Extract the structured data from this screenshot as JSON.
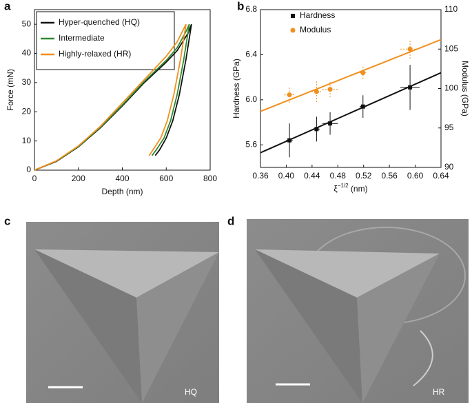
{
  "chart_data": [
    {
      "type": "line",
      "panel": "a",
      "xlabel": "Depth (nm)",
      "ylabel": "Force (mN)",
      "xlim": [
        0,
        800
      ],
      "xticks": [
        0,
        200,
        400,
        600,
        800
      ],
      "ylim": [
        0,
        55
      ],
      "yticks": [
        0,
        10,
        20,
        30,
        40,
        50
      ],
      "legend": "top-left",
      "series": [
        {
          "name": "Hyper-quenched (HQ)",
          "color": "#111111",
          "x": [
            0,
            100,
            200,
            300,
            400,
            500,
            600,
            650,
            700,
            715,
            690,
            660,
            630,
            600,
            570,
            550
          ],
          "values": [
            0,
            3,
            8,
            14.5,
            22,
            30,
            37,
            41,
            47,
            50,
            38,
            26,
            17,
            11,
            7,
            5
          ]
        },
        {
          "name": "Intermediate",
          "color": "#2e8b2e",
          "x": [
            0,
            100,
            200,
            300,
            400,
            500,
            600,
            650,
            690,
            705,
            680,
            650,
            620,
            590,
            555,
            535
          ],
          "values": [
            0,
            3.1,
            8.1,
            14.7,
            22.3,
            30.4,
            37.6,
            42,
            47.5,
            50,
            38,
            26,
            17,
            11,
            7,
            5
          ]
        },
        {
          "name": "Highly-relaxed (HR)",
          "color": "#f0901e",
          "x": [
            0,
            100,
            200,
            300,
            400,
            500,
            600,
            650,
            690,
            665,
            635,
            605,
            575,
            540,
            522
          ],
          "values": [
            0,
            3.2,
            8.3,
            15,
            23,
            31,
            39,
            44,
            50,
            38,
            26,
            17,
            11,
            7,
            5
          ]
        }
      ]
    },
    {
      "type": "scatter",
      "panel": "b",
      "xlabel": [
        "ξ",
        "−1/2",
        " (nm)"
      ],
      "ylabel": "Hardness (GPa)",
      "y2label": "Modulus (GPa)",
      "xlim": [
        0.36,
        0.64
      ],
      "xticks": [
        0.36,
        {
          "value": 0.4,
          "label": "0.40"
        },
        0.44,
        0.48,
        0.52,
        0.56,
        {
          "value": 0.6,
          "label": "0.60"
        },
        0.64
      ],
      "ylim": [
        5.4,
        6.8
      ],
      "yticks": [
        5.6,
        {
          "value": 6,
          "label": "6.0"
        },
        6.4,
        6.8
      ],
      "y2lim": [
        90,
        110
      ],
      "y2ticks": [
        90,
        95,
        100,
        105,
        110
      ],
      "legend": "top-left",
      "series": [
        {
          "name": "Hardness",
          "color": "#111111",
          "marker": "square",
          "x": [
            0.405,
            0.447,
            0.468,
            0.519,
            0.592
          ],
          "values": [
            5.64,
            5.74,
            5.79,
            5.94,
            6.11
          ],
          "errors": [
            0.15,
            0.11,
            0.1,
            0.1,
            0.2
          ],
          "xerrors": [
            0.005,
            0.005,
            0.012,
            0.005,
            0.015
          ]
        },
        {
          "name": "Modulus",
          "color": "#f0901e",
          "marker": "circle",
          "axis": "y2",
          "x": [
            0.405,
            0.447,
            0.468,
            0.519,
            0.592
          ],
          "values": [
            99.2,
            99.6,
            99.9,
            102,
            105
          ],
          "errors": [
            1,
            1.3,
            1,
            0.8,
            1.2
          ],
          "xerrors": [
            0.008,
            0.008,
            0.012,
            0.005,
            0.015
          ]
        }
      ],
      "fits": [
        {
          "color": "#111111",
          "x": [
            0.36,
            0.64
          ],
          "values": [
            5.53,
            6.24
          ]
        },
        {
          "color": "#f0901e",
          "axis": "y2",
          "x": [
            0.36,
            0.64
          ],
          "values": [
            97.1,
            106.2
          ]
        }
      ]
    }
  ],
  "images": [
    {
      "panel": "c",
      "label": "HQ"
    },
    {
      "panel": "d",
      "label": "HR"
    }
  ]
}
